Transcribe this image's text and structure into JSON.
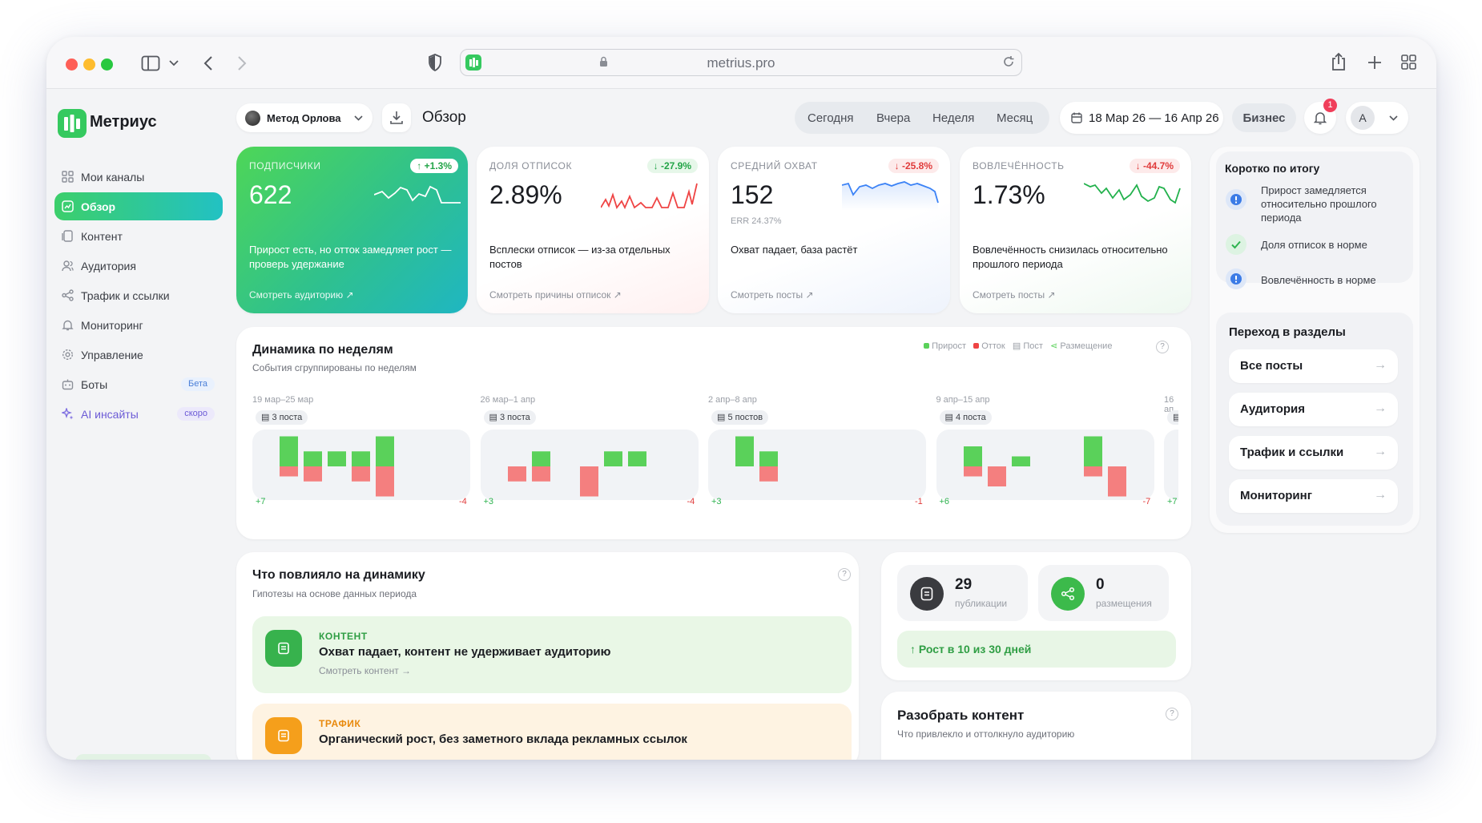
{
  "browser": {
    "url": "metrius.pro"
  },
  "app": {
    "name": "Метриус"
  },
  "sidebar": {
    "items": [
      {
        "label": "Мои каналы",
        "icon": "grid-icon"
      },
      {
        "label": "Обзор",
        "icon": "overview-icon"
      },
      {
        "label": "Контент",
        "icon": "content-icon"
      },
      {
        "label": "Аудитория",
        "icon": "users-icon"
      },
      {
        "label": "Трафик и ссылки",
        "icon": "share-icon"
      },
      {
        "label": "Мониторинг",
        "icon": "bell-icon"
      },
      {
        "label": "Управление",
        "icon": "gear-icon"
      },
      {
        "label": "Боты",
        "icon": "bot-icon",
        "badge": "Бета"
      },
      {
        "label": "AI инсайты",
        "icon": "sparkle-icon",
        "badge": "скоро"
      }
    ]
  },
  "header": {
    "channel": "Метод Орлова",
    "title": "Обзор",
    "periods": [
      "Сегодня",
      "Вчера",
      "Неделя",
      "Месяц"
    ],
    "date_range": "18 Мар 26 — 16 Апр 26",
    "plan": "Бизнес",
    "notifications": "1",
    "avatar": "А"
  },
  "kpis": [
    {
      "label": "ПОДПИСЧИКИ",
      "value": "622",
      "delta": "+1.3%",
      "sub": "",
      "desc": "Прирост есть, но отток замедляет рост — проверь удержание",
      "link": "Смотреть аудиторию ↗"
    },
    {
      "label": "ДОЛЯ ОТПИСОК",
      "value": "2.89%",
      "delta": "-27.9%",
      "sub": "",
      "desc": "Всплески отписок — из-за отдельных постов",
      "link": "Смотреть причины отписок ↗"
    },
    {
      "label": "СРЕДНИЙ ОХВАТ",
      "value": "152",
      "delta": "-25.8%",
      "sub": "ERR 24.37%",
      "desc": "Охват падает, база растёт",
      "link": "Смотреть посты ↗"
    },
    {
      "label": "ВОВЛЕЧЁННОСТЬ",
      "value": "1.73%",
      "delta": "-44.7%",
      "sub": "",
      "desc": "Вовлечённость снизилась относительно прошлого периода",
      "link": "Смотреть посты ↗"
    }
  ],
  "summary": {
    "title": "Коротко по итогу",
    "items": [
      {
        "text": "Прирост замедляется относительно прошлого периода",
        "status": "info"
      },
      {
        "text": "Доля отписок в норме",
        "status": "ok"
      },
      {
        "text": "Вовлечённость в норме",
        "status": "info"
      }
    ]
  },
  "sections": {
    "title": "Переход в разделы",
    "items": [
      "Все посты",
      "Аудитория",
      "Трафик и ссылки",
      "Мониторинг"
    ],
    "arrow": "→"
  },
  "weekly": {
    "title": "Динамика по неделям",
    "subtitle": "События сгруппированы по неделям",
    "legend": [
      "Прирост",
      "Отток",
      "Пост",
      "Размещение"
    ],
    "weeks": [
      {
        "range": "19 мар–25 мар",
        "posts": "3 поста",
        "plus": "+7",
        "minus": "-4"
      },
      {
        "range": "26 мар–1 апр",
        "posts": "3 поста",
        "plus": "+3",
        "minus": "-4"
      },
      {
        "range": "2 апр–8 апр",
        "posts": "5 постов",
        "plus": "+3",
        "minus": "-1"
      },
      {
        "range": "9 апр–15 апр",
        "posts": "4 поста",
        "plus": "+6",
        "minus": "-7"
      },
      {
        "range": "16 ап",
        "posts": "",
        "plus": "+7",
        "minus": ""
      }
    ]
  },
  "factors": {
    "title": "Что повлияло на динамику",
    "subtitle": "Гипотезы на основе данных периода",
    "items": [
      {
        "tag": "КОНТЕНТ",
        "text": "Охват падает, контент не удерживает аудиторию",
        "link": "Смотреть контент →"
      },
      {
        "tag": "ТРАФИК",
        "text": "Органический рост, без заметного вклада рекламных ссылок",
        "link": ""
      }
    ]
  },
  "stats": {
    "publications_value": "29",
    "publications_label": "публикации",
    "placements_value": "0",
    "placements_label": "размещения",
    "growth": "↑ Рост в 10 из 30 дней"
  },
  "analyze": {
    "title": "Разобрать контент",
    "subtitle": "Что привлекло и оттолкнуло аудиторию"
  },
  "colors": {
    "accent": "#35c95f",
    "growth": "#5ad15a",
    "churn": "#f47f7f",
    "danger": "#ef4444",
    "orange": "#f59e0b"
  }
}
